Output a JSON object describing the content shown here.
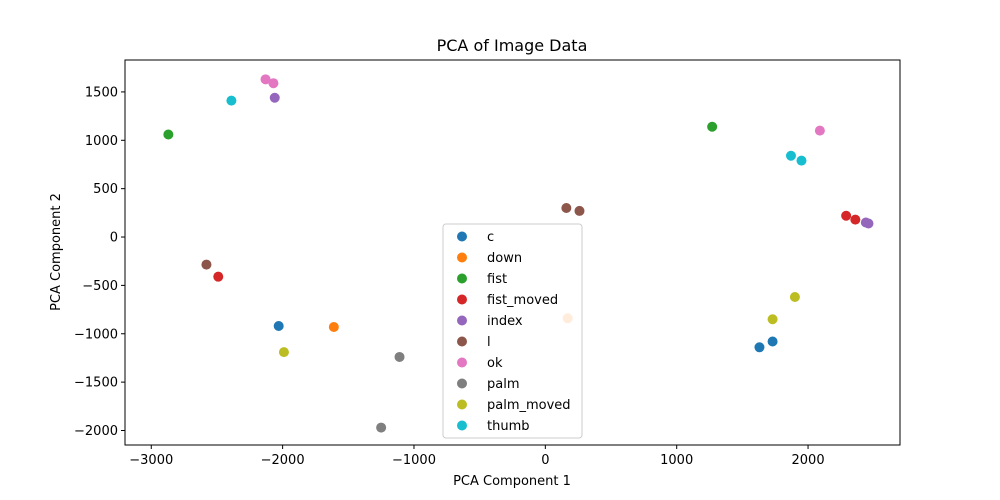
{
  "chart_data": {
    "type": "scatter",
    "title": "PCA of Image Data",
    "xlabel": "PCA Component 1",
    "ylabel": "PCA Component 2",
    "xlim": [
      -3200,
      2700
    ],
    "ylim": [
      -2150,
      1830
    ],
    "xticks": [
      -3000,
      -2000,
      -1000,
      0,
      1000,
      2000
    ],
    "yticks": [
      -2000,
      -1500,
      -1000,
      -500,
      0,
      500,
      1000,
      1500
    ],
    "xtick_labels": [
      "−3000",
      "−2000",
      "−1000",
      "0",
      "1000",
      "2000"
    ],
    "ytick_labels": [
      "−2000",
      "−1500",
      "−1000",
      "−500",
      "0",
      "500",
      "1000",
      "1500"
    ],
    "grid": false,
    "legend_position": "bottom-center",
    "series": [
      {
        "name": "c",
        "color": "#1f77b4",
        "points": [
          [
            -2030,
            -920
          ],
          [
            1630,
            -1140
          ],
          [
            1730,
            -1080
          ]
        ]
      },
      {
        "name": "down",
        "color": "#ff7f0e",
        "points": [
          [
            -1610,
            -930
          ],
          [
            170,
            -840
          ]
        ]
      },
      {
        "name": "fist",
        "color": "#2ca02c",
        "points": [
          [
            -2870,
            1060
          ],
          [
            1270,
            1140
          ]
        ]
      },
      {
        "name": "fist_moved",
        "color": "#d62728",
        "points": [
          [
            -2490,
            -410
          ],
          [
            2290,
            220
          ],
          [
            2360,
            180
          ]
        ]
      },
      {
        "name": "index",
        "color": "#9467bd",
        "points": [
          [
            -2060,
            1440
          ],
          [
            2440,
            150
          ],
          [
            2460,
            140
          ]
        ]
      },
      {
        "name": "l",
        "color": "#8c564b",
        "points": [
          [
            -2580,
            -285
          ],
          [
            160,
            300
          ],
          [
            260,
            270
          ]
        ]
      },
      {
        "name": "ok",
        "color": "#e377c2",
        "points": [
          [
            -2130,
            1630
          ],
          [
            -2070,
            1590
          ],
          [
            2090,
            1100
          ]
        ]
      },
      {
        "name": "palm",
        "color": "#7f7f7f",
        "points": [
          [
            -1110,
            -1240
          ],
          [
            -1250,
            -1970
          ]
        ]
      },
      {
        "name": "palm_moved",
        "color": "#bcbd22",
        "points": [
          [
            -1990,
            -1190
          ],
          [
            1730,
            -850
          ],
          [
            1900,
            -620
          ]
        ]
      },
      {
        "name": "thumb",
        "color": "#17becf",
        "points": [
          [
            -2390,
            1410
          ],
          [
            1870,
            840
          ],
          [
            1950,
            790
          ]
        ]
      }
    ]
  }
}
